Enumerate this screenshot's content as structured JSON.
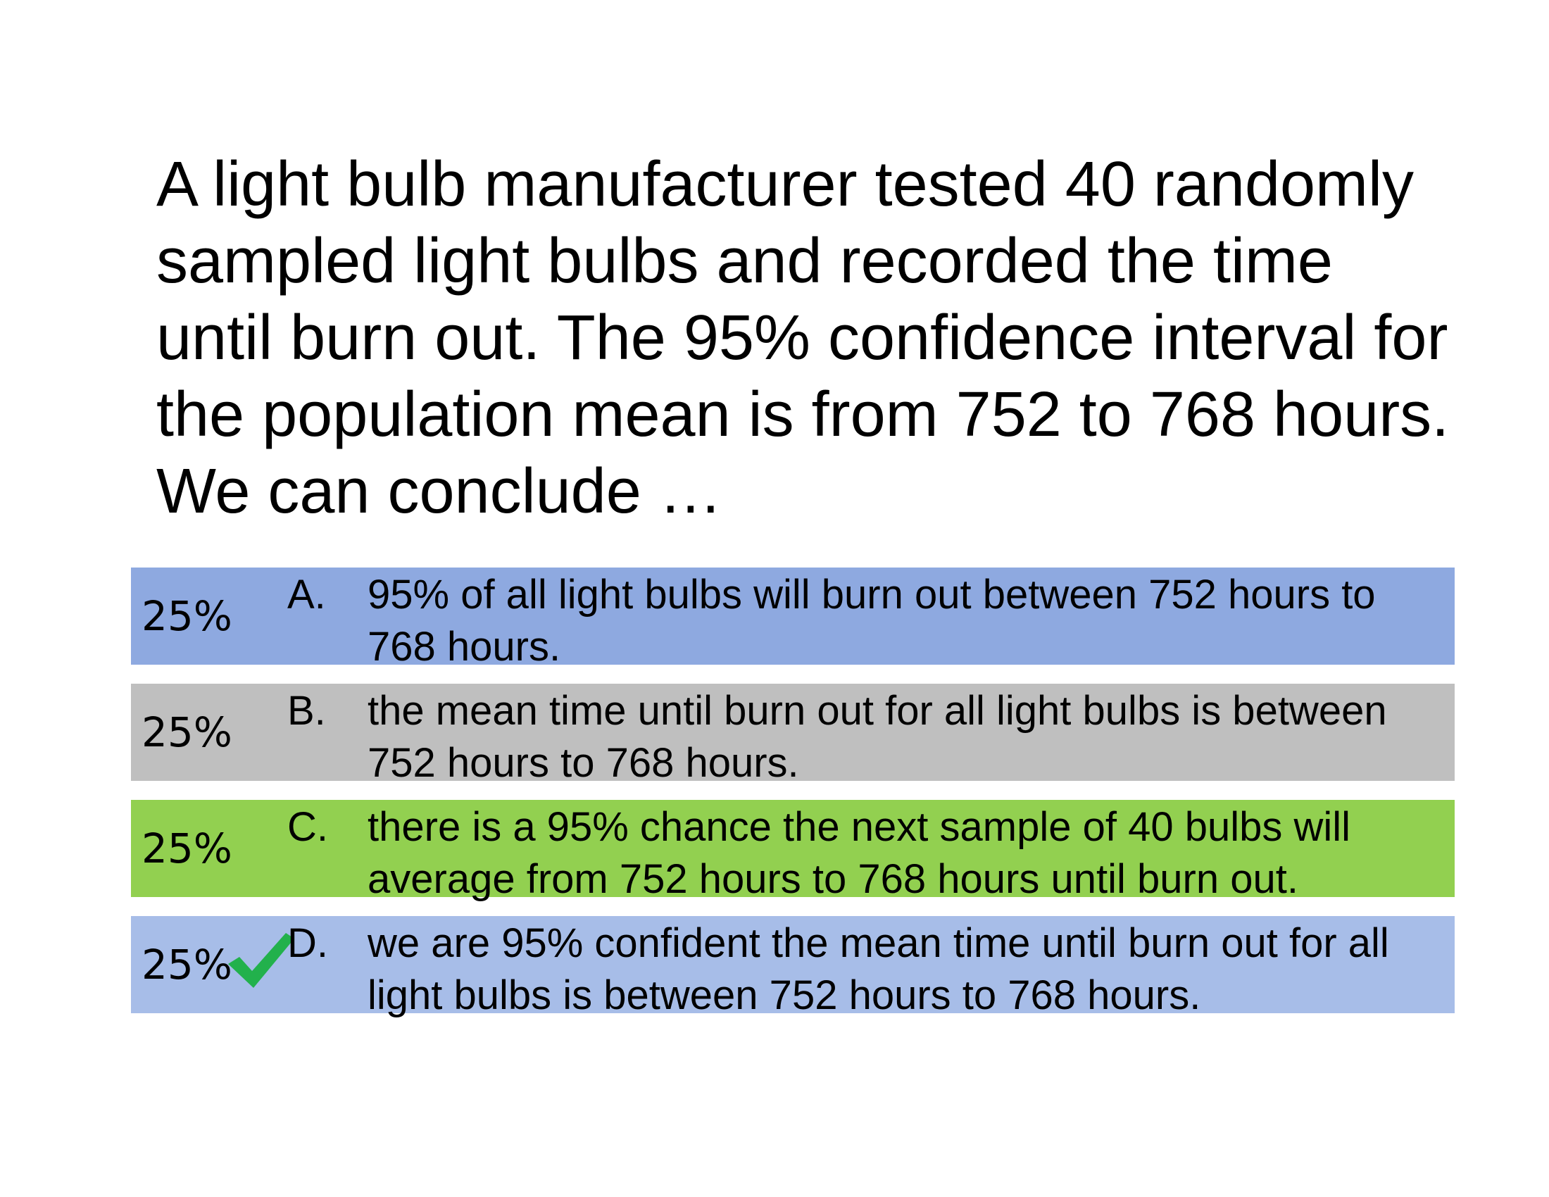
{
  "question": "A light bulb manufacturer tested 40 randomly sampled light bulbs and recorded the time until burn out. The 95% confidence interval for the population mean is from 752 to 768 hours. We can conclude …",
  "choices": [
    {
      "percent": "25%",
      "letter": "A.",
      "text": "95% of all light bulbs will burn out between 752 hours to 768 hours.",
      "color": "#8ea9e0",
      "correct": false
    },
    {
      "percent": "25%",
      "letter": "B.",
      "text": "the mean time until burn out for all light bulbs is between 752 hours to 768 hours.",
      "color": "#bfbfbf",
      "correct": false
    },
    {
      "percent": "25%",
      "letter": "C.",
      "text": "there is a 95% chance the next sample of 40 bulbs will average from 752 hours to 768 hours until burn out.",
      "color": "#92d050",
      "correct": false
    },
    {
      "percent": "25%",
      "letter": "D.",
      "text": "we are 95% confident the mean time until burn out for all light bulbs is between 752 hours to 768 hours.",
      "color": "#a7bde8",
      "correct": true,
      "correct_icon": "checkmark-icon",
      "correct_icon_color": "#22b14c"
    }
  ]
}
